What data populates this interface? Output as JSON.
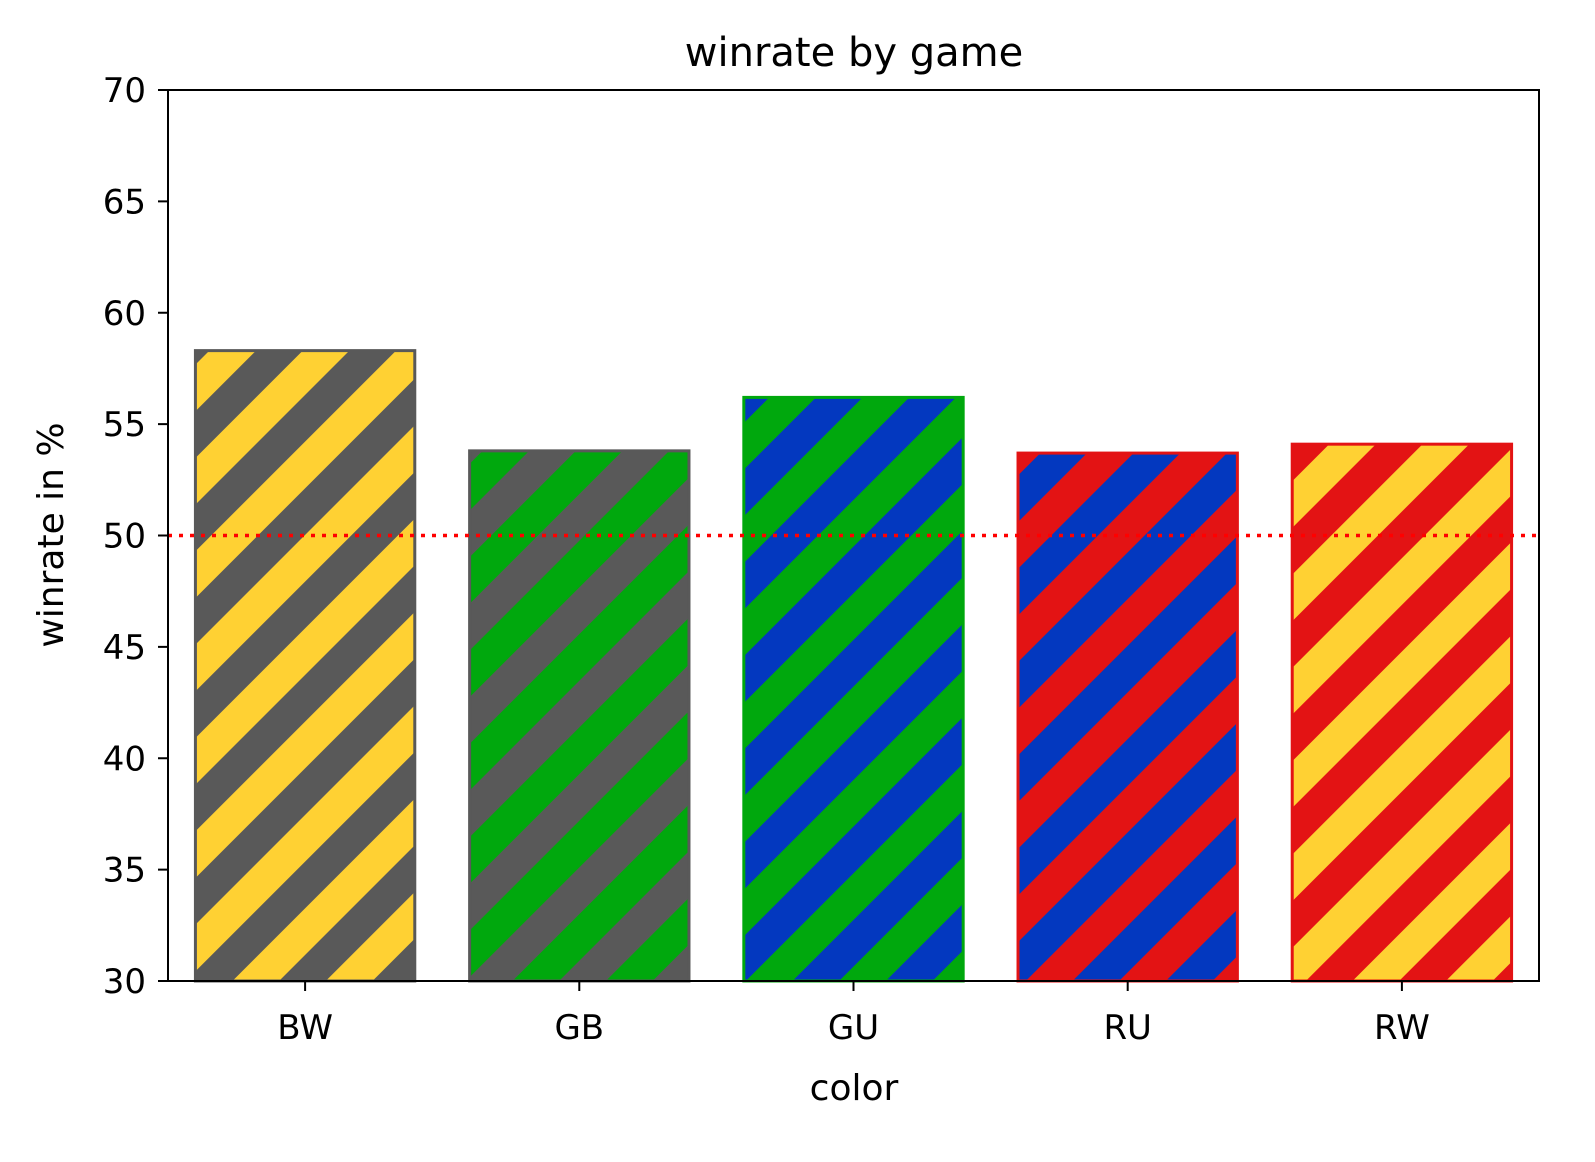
{
  "chart_data": {
    "type": "bar",
    "title": "winrate by game",
    "xlabel": "color",
    "ylabel": "winrate in %",
    "ylim": [
      30,
      70
    ],
    "yticks": [
      30,
      35,
      40,
      45,
      50,
      55,
      60,
      65,
      70
    ],
    "categories": [
      "BW",
      "GB",
      "GU",
      "RU",
      "RW"
    ],
    "values": [
      58.3,
      53.8,
      56.2,
      53.7,
      54.1
    ],
    "bar_colors": [
      {
        "fill": "#595959",
        "stripe": "#ffd133"
      },
      {
        "fill": "#595959",
        "stripe": "#00a80d"
      },
      {
        "fill": "#00a80d",
        "stripe": "#0338bf"
      },
      {
        "fill": "#e31314",
        "stripe": "#0338bf"
      },
      {
        "fill": "#e31314",
        "stripe": "#ffd133"
      }
    ],
    "reference_line": {
      "value": 50,
      "color": "#ff0000",
      "style": "dotted"
    },
    "grid": false,
    "legend": null
  }
}
